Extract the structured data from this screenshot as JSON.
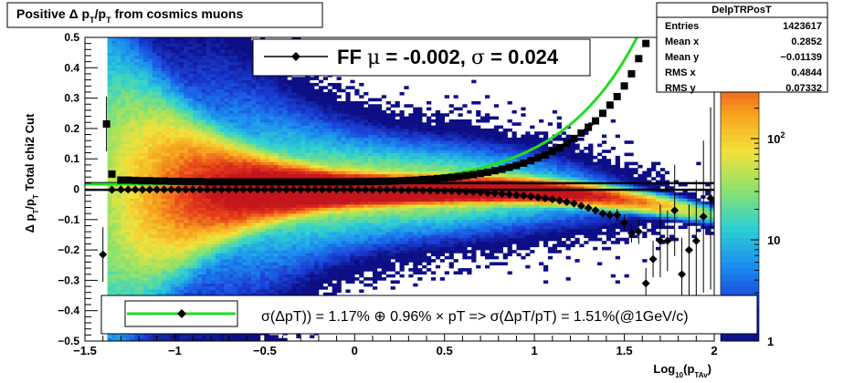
{
  "title": {
    "prefix": "Positive ",
    "delta": "Δ",
    "p": " p",
    "sub1": "T",
    "slash": "/p",
    "sub2": "T",
    "suffix": " from cosmics muons"
  },
  "stats_box": {
    "name": "DelpTRPosT",
    "rows": [
      {
        "label": "Entries",
        "value": "1423617"
      },
      {
        "label": "Mean x",
        "value": "0.2852"
      },
      {
        "label": "Mean y",
        "value": "−0.01139"
      },
      {
        "label": "RMS x",
        "value": "0.4844"
      },
      {
        "label": "RMS y",
        "value": "0.07332"
      }
    ]
  },
  "fit_legend": {
    "text_a": "FF ",
    "mu": "μ",
    "text_b": " = -0.002, ",
    "sigma": "σ",
    "text_c": " =   0.024"
  },
  "resolution_legend": {
    "text": "σ(ΔpT)) =  1.17% ⊕  0.96% × pT => σ(ΔpT/pT) =  1.51%(@1GeV/c)"
  },
  "colors": {
    "fit_line": "#22dd22",
    "markers": "#000000",
    "palette": [
      "#0d0e86",
      "#1a3fd6",
      "#1b8ef0",
      "#2ed1d1",
      "#8fe26b",
      "#f2e23a",
      "#f7a21f",
      "#e8431a",
      "#c4141c"
    ]
  },
  "chart_data": {
    "type": "heatmap",
    "xlabel": {
      "main": "Log",
      "sub1": "10",
      "mid": "(p",
      "sub2": "TAv",
      "end": ")"
    },
    "ylabel": {
      "delta": "Δ",
      "p": " p",
      "sub1": "T",
      "slash": "/p",
      "sub2": "T",
      "suffix": "  Total chi2 Cut"
    },
    "xlim": [
      -1.5,
      2.0
    ],
    "ylim": [
      -0.5,
      0.5
    ],
    "x_ticks": [
      {
        "v": -1.5,
        "label": "−1.5"
      },
      {
        "v": -1.0,
        "label": "−1"
      },
      {
        "v": -0.5,
        "label": "−0.5"
      },
      {
        "v": 0,
        "label": "0"
      },
      {
        "v": 0.5,
        "label": "0.5"
      },
      {
        "v": 1.0,
        "label": "1"
      },
      {
        "v": 1.5,
        "label": "1.5"
      },
      {
        "v": 2.0,
        "label": "2"
      }
    ],
    "y_ticks": [
      {
        "v": 0.5,
        "label": "0.5"
      },
      {
        "v": 0.4,
        "label": "0.4"
      },
      {
        "v": 0.3,
        "label": "0.3"
      },
      {
        "v": 0.2,
        "label": "0.2"
      },
      {
        "v": 0.1,
        "label": "0.1"
      },
      {
        "v": 0,
        "label": "0"
      },
      {
        "v": -0.1,
        "label": "−0.1"
      },
      {
        "v": -0.2,
        "label": "−0.2"
      },
      {
        "v": -0.3,
        "label": "−0.3"
      },
      {
        "v": -0.4,
        "label": "−0.4"
      },
      {
        "v": -0.5,
        "label": "−0.5"
      }
    ],
    "z_scale": "log",
    "zlim": [
      1,
      1000
    ],
    "z_ticks": [
      {
        "v": 1,
        "label": "1"
      },
      {
        "v": 10,
        "label": "10"
      },
      {
        "v": 100,
        "label": "10",
        "sup": "2"
      }
    ],
    "horizontal_line_y": 0.02,
    "sigma_points": {
      "x": [
        -1.38,
        -1.35,
        -1.3,
        -1.26,
        -1.22,
        -1.18,
        -1.14,
        -1.1,
        -1.06,
        -1.02,
        -0.98,
        -0.94,
        -0.9,
        -0.86,
        -0.82,
        -0.78,
        -0.74,
        -0.7,
        -0.66,
        -0.62,
        -0.58,
        -0.54,
        -0.5,
        -0.46,
        -0.42,
        -0.38,
        -0.34,
        -0.3,
        -0.26,
        -0.22,
        -0.18,
        -0.14,
        -0.1,
        -0.06,
        -0.02,
        0.02,
        0.06,
        0.1,
        0.14,
        0.18,
        0.22,
        0.26,
        0.3,
        0.34,
        0.38,
        0.42,
        0.46,
        0.5,
        0.54,
        0.58,
        0.62,
        0.66,
        0.7,
        0.74,
        0.78,
        0.82,
        0.86,
        0.9,
        0.94,
        0.98,
        1.02,
        1.06,
        1.1,
        1.14,
        1.18,
        1.22,
        1.26,
        1.3,
        1.34,
        1.38,
        1.42,
        1.46,
        1.5,
        1.54,
        1.58,
        1.62
      ],
      "y": [
        0.215,
        0.05,
        0.03,
        0.03,
        0.029,
        0.028,
        0.028,
        0.027,
        0.027,
        0.026,
        0.026,
        0.025,
        0.025,
        0.025,
        0.024,
        0.024,
        0.024,
        0.024,
        0.024,
        0.024,
        0.024,
        0.024,
        0.024,
        0.024,
        0.024,
        0.024,
        0.024,
        0.024,
        0.024,
        0.024,
        0.024,
        0.024,
        0.024,
        0.024,
        0.024,
        0.025,
        0.025,
        0.025,
        0.026,
        0.026,
        0.027,
        0.028,
        0.029,
        0.03,
        0.032,
        0.033,
        0.035,
        0.037,
        0.039,
        0.042,
        0.045,
        0.048,
        0.052,
        0.056,
        0.061,
        0.066,
        0.072,
        0.078,
        0.086,
        0.094,
        0.103,
        0.113,
        0.125,
        0.137,
        0.152,
        0.167,
        0.185,
        0.204,
        0.225,
        0.25,
        0.277,
        0.305,
        0.34,
        0.38,
        0.43,
        0.48
      ]
    },
    "mu_points": {
      "x": [
        -1.4,
        -1.35,
        -1.3,
        -1.26,
        -1.22,
        -1.18,
        -1.14,
        -1.1,
        -1.06,
        -1.02,
        -0.98,
        -0.94,
        -0.9,
        -0.86,
        -0.82,
        -0.78,
        -0.74,
        -0.7,
        -0.66,
        -0.62,
        -0.58,
        -0.54,
        -0.5,
        -0.46,
        -0.42,
        -0.38,
        -0.34,
        -0.3,
        -0.26,
        -0.22,
        -0.18,
        -0.14,
        -0.1,
        -0.06,
        -0.02,
        0.02,
        0.06,
        0.1,
        0.14,
        0.18,
        0.22,
        0.26,
        0.3,
        0.34,
        0.38,
        0.42,
        0.46,
        0.5,
        0.54,
        0.58,
        0.62,
        0.66,
        0.7,
        0.74,
        0.78,
        0.82,
        0.86,
        0.9,
        0.94,
        0.98,
        1.02,
        1.06,
        1.1,
        1.14,
        1.18,
        1.22,
        1.26,
        1.3,
        1.34,
        1.38,
        1.42,
        1.46,
        1.5,
        1.54,
        1.58,
        1.62,
        1.66,
        1.7,
        1.74,
        1.78,
        1.82,
        1.86,
        1.9,
        1.94,
        1.98
      ],
      "y": [
        -0.215,
        -0.002,
        -0.001,
        -0.001,
        -0.001,
        -0.001,
        -0.001,
        -0.001,
        -0.001,
        -0.001,
        -0.001,
        -0.001,
        -0.001,
        -0.001,
        -0.001,
        -0.001,
        -0.001,
        -0.001,
        -0.001,
        -0.001,
        -0.001,
        -0.001,
        -0.001,
        -0.001,
        -0.001,
        -0.001,
        -0.001,
        -0.001,
        -0.001,
        -0.001,
        -0.001,
        -0.001,
        -0.001,
        -0.001,
        -0.001,
        -0.002,
        -0.002,
        -0.002,
        -0.002,
        -0.002,
        -0.002,
        -0.003,
        -0.003,
        -0.003,
        -0.004,
        -0.004,
        -0.005,
        -0.005,
        -0.006,
        -0.007,
        -0.008,
        -0.009,
        -0.01,
        -0.012,
        -0.013,
        -0.015,
        -0.017,
        -0.019,
        -0.021,
        -0.024,
        -0.027,
        -0.03,
        -0.033,
        -0.037,
        -0.042,
        -0.047,
        -0.055,
        -0.062,
        -0.07,
        -0.08,
        -0.085,
        -0.085,
        -0.11,
        -0.145,
        -0.14,
        -0.31,
        -0.23,
        -0.17,
        -0.17,
        -0.07,
        -0.28,
        -0.2,
        -0.17,
        -0.09,
        -0.03
      ],
      "errors": [
        0.09,
        0.003,
        0.002,
        0.002,
        0.002,
        0.002,
        0.002,
        0.002,
        0.002,
        0.002,
        0.002,
        0.002,
        0.002,
        0.002,
        0.002,
        0.002,
        0.002,
        0.002,
        0.002,
        0.002,
        0.002,
        0.002,
        0.002,
        0.002,
        0.002,
        0.002,
        0.002,
        0.002,
        0.002,
        0.002,
        0.002,
        0.002,
        0.002,
        0.002,
        0.002,
        0.002,
        0.002,
        0.002,
        0.002,
        0.002,
        0.002,
        0.002,
        0.002,
        0.002,
        0.002,
        0.002,
        0.002,
        0.002,
        0.002,
        0.002,
        0.002,
        0.002,
        0.002,
        0.002,
        0.002,
        0.002,
        0.002,
        0.003,
        0.003,
        0.003,
        0.003,
        0.004,
        0.004,
        0.005,
        0.005,
        0.006,
        0.007,
        0.008,
        0.01,
        0.012,
        0.015,
        0.02,
        0.025,
        0.03,
        0.04,
        0.05,
        0.06,
        0.12,
        0.1,
        0.15,
        0.12,
        0.15,
        0.2,
        0.25,
        0.3
      ]
    },
    "resolution_fit": {
      "a_percent": 1.17,
      "b_percent": 0.96
    }
  }
}
